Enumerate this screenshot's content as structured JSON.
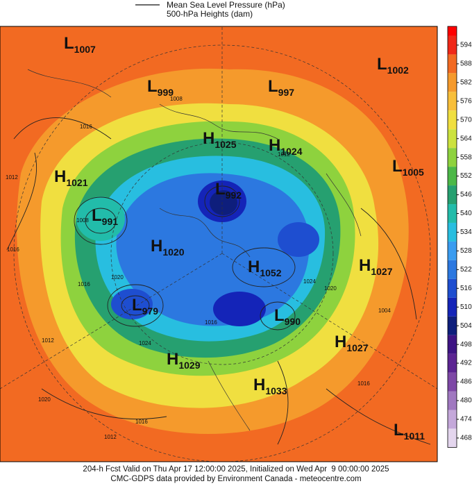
{
  "legend": {
    "items": [
      "Mean Sea Level Pressure (hPa)",
      "500-hPa Heights (dam)"
    ]
  },
  "centers": [
    {
      "type": "L",
      "value": "1007"
    },
    {
      "type": "L",
      "value": "999"
    },
    {
      "type": "L",
      "value": "997"
    },
    {
      "type": "L",
      "value": "1002"
    },
    {
      "type": "H",
      "value": "1025"
    },
    {
      "type": "H",
      "value": "1024"
    },
    {
      "type": "L",
      "value": "1005"
    },
    {
      "type": "H",
      "value": "1021"
    },
    {
      "type": "L",
      "value": "992"
    },
    {
      "type": "L",
      "value": "991"
    },
    {
      "type": "H",
      "value": "1020"
    },
    {
      "type": "H",
      "value": "1052"
    },
    {
      "type": "H",
      "value": "1027"
    },
    {
      "type": "L",
      "value": "979"
    },
    {
      "type": "L",
      "value": "990"
    },
    {
      "type": "H",
      "value": "1027"
    },
    {
      "type": "H",
      "value": "1029"
    },
    {
      "type": "H",
      "value": "1033"
    },
    {
      "type": "L",
      "value": "1011"
    }
  ],
  "isobar_labels": [
    "1016",
    "1012",
    "1016",
    "1012",
    "1020",
    "1024",
    "1012",
    "1016",
    "1020",
    "1016",
    "1012",
    "1008",
    "1016",
    "1024",
    "1020",
    "1016",
    "1004",
    "1008"
  ],
  "colorbar": {
    "levels": [
      594,
      588,
      582,
      576,
      570,
      564,
      558,
      552,
      546,
      540,
      534,
      528,
      522,
      516,
      510,
      504,
      498,
      492,
      486,
      480,
      474,
      468
    ],
    "colors": [
      "#f02818",
      "#f26a22",
      "#f59a2c",
      "#f8bf3a",
      "#f0df40",
      "#cce23e",
      "#8ed23e",
      "#4cb848",
      "#26a070",
      "#22bcaa",
      "#28bee0",
      "#3a9cf0",
      "#2c78e0",
      "#1e4ed0",
      "#1424b8",
      "#0e1e7c",
      "#3e1484",
      "#5c2492",
      "#7e48a6",
      "#a078c0",
      "#c4a8da",
      "#e4d6ee"
    ],
    "top_color": "#ff0000"
  },
  "footer": {
    "lines": [
      "204-h Fcst Valid on Thu Apr 17 12:00:00 2025, Initialized on Wed Apr  9 00:00:00 2025",
      "CMC-GDPS data provided by Environment Canada - meteocentre.com"
    ]
  }
}
